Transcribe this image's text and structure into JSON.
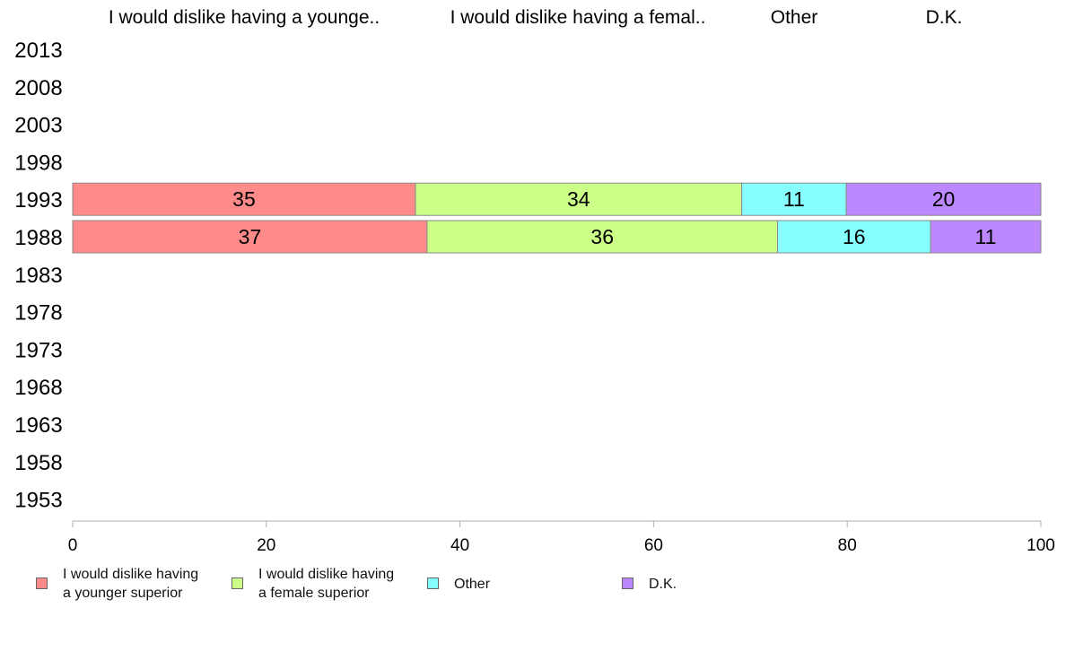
{
  "chart_data": {
    "type": "bar",
    "orientation": "horizontal",
    "stacked": true,
    "column_headers": [
      "I would dislike having a younge..",
      "I would dislike having a femal..",
      "Other",
      "D.K."
    ],
    "categories": [
      "2013",
      "2008",
      "2003",
      "1998",
      "1993",
      "1988",
      "1983",
      "1978",
      "1973",
      "1968",
      "1963",
      "1958",
      "1953"
    ],
    "series": [
      {
        "name": "I would dislike having a younger superior",
        "legend_lines": [
          "I would dislike having",
          "a younger superior"
        ],
        "color": "#FF8A8A",
        "values": [
          null,
          null,
          null,
          null,
          35.4,
          36.6,
          null,
          null,
          null,
          null,
          null,
          null,
          null
        ],
        "labels": [
          "",
          "",
          "",
          "",
          "35",
          "37",
          "",
          "",
          "",
          "",
          "",
          "",
          ""
        ]
      },
      {
        "name": "I would dislike having a female superior",
        "legend_lines": [
          "I would dislike having",
          "a female superior"
        ],
        "color": "#CCFF88",
        "values": [
          null,
          null,
          null,
          null,
          33.7,
          36.2,
          null,
          null,
          null,
          null,
          null,
          null,
          null
        ],
        "labels": [
          "",
          "",
          "",
          "",
          "34",
          "36",
          "",
          "",
          "",
          "",
          "",
          "",
          ""
        ]
      },
      {
        "name": "Other",
        "legend_lines": [
          "Other"
        ],
        "color": "#88FFFF",
        "values": [
          null,
          null,
          null,
          null,
          10.8,
          15.8,
          null,
          null,
          null,
          null,
          null,
          null,
          null
        ],
        "labels": [
          "",
          "",
          "",
          "",
          "11",
          "16",
          "",
          "",
          "",
          "",
          "",
          "",
          ""
        ]
      },
      {
        "name": "D.K.",
        "legend_lines": [
          "D.K."
        ],
        "color": "#BB88FF",
        "values": [
          null,
          null,
          null,
          null,
          20.1,
          11.4,
          null,
          null,
          null,
          null,
          null,
          null,
          null
        ],
        "labels": [
          "",
          "",
          "",
          "",
          "20",
          "11",
          "",
          "",
          "",
          "",
          "",
          "",
          ""
        ]
      }
    ],
    "xlim": [
      0,
      100
    ],
    "xticks": [
      0,
      20,
      40,
      60,
      80,
      100
    ],
    "grid": false,
    "legend_position": "bottom"
  }
}
